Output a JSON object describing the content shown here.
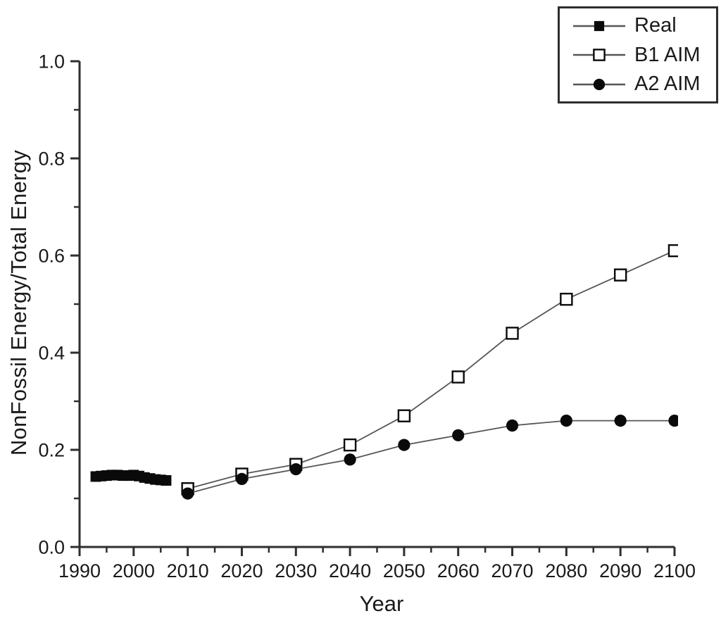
{
  "chart_data": {
    "type": "line",
    "title": "",
    "xlabel": "Year",
    "ylabel": "NonFossil Energy/Total Energy",
    "xlim": [
      1990,
      2100
    ],
    "ylim": [
      0.0,
      1.0
    ],
    "x_major_ticks": [
      1990,
      2000,
      2010,
      2020,
      2030,
      2040,
      2050,
      2060,
      2070,
      2080,
      2090,
      2100
    ],
    "x_minor_ticks": [
      1995,
      2005,
      2015,
      2025,
      2035,
      2045,
      2055,
      2065,
      2075,
      2085,
      2095
    ],
    "y_major_ticks": [
      0.0,
      0.2,
      0.4,
      0.6,
      0.8,
      1.0
    ],
    "y_minor_ticks": [
      0.1,
      0.3,
      0.5,
      0.7,
      0.9
    ],
    "y_tick_labels": [
      "0.0",
      "0.2",
      "0.4",
      "0.6",
      "0.8",
      "1.0"
    ],
    "grid": false,
    "legend_position": "top-right",
    "colors": {
      "axis": "#2e2e2e",
      "line": "#565656",
      "marker": "#0a0a0a",
      "marker_open_fill": "#ffffff",
      "text": "#1a1a1a",
      "background": "#ffffff"
    },
    "series": [
      {
        "name": "Real",
        "marker": "filled-square",
        "x": [
          1993,
          1994,
          1995,
          1996,
          1997,
          1998,
          1999,
          2000,
          2001,
          2002,
          2003,
          2004,
          2005,
          2006
        ],
        "y": [
          0.145,
          0.146,
          0.147,
          0.148,
          0.148,
          0.147,
          0.147,
          0.148,
          0.146,
          0.143,
          0.141,
          0.139,
          0.138,
          0.137
        ]
      },
      {
        "name": "B1 AIM",
        "marker": "open-square",
        "x": [
          2010,
          2020,
          2030,
          2040,
          2050,
          2060,
          2070,
          2080,
          2090,
          2100
        ],
        "y": [
          0.12,
          0.15,
          0.17,
          0.21,
          0.27,
          0.35,
          0.44,
          0.51,
          0.56,
          0.61
        ]
      },
      {
        "name": "A2 AIM",
        "marker": "filled-circle",
        "x": [
          2010,
          2020,
          2030,
          2040,
          2050,
          2060,
          2070,
          2080,
          2090,
          2100
        ],
        "y": [
          0.11,
          0.14,
          0.16,
          0.18,
          0.21,
          0.23,
          0.25,
          0.26,
          0.26,
          0.26
        ]
      }
    ]
  }
}
